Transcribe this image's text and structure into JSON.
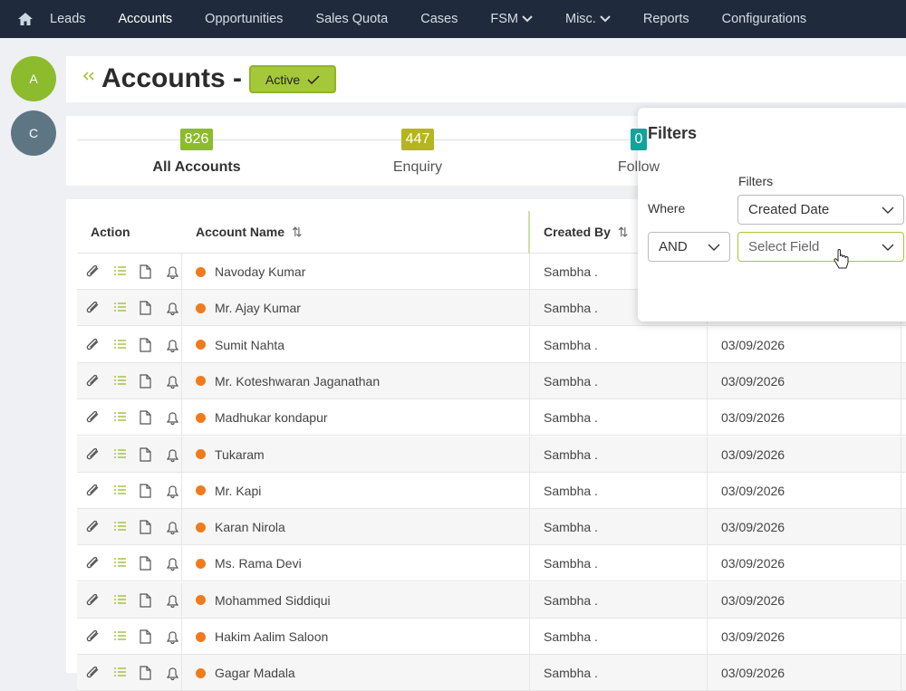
{
  "nav": {
    "items": [
      "Leads",
      "Accounts",
      "Opportunities",
      "Sales Quota",
      "Cases",
      "FSM",
      "Misc.",
      "Reports",
      "Configurations"
    ]
  },
  "sidebar": {
    "avatars": [
      "A",
      "C"
    ]
  },
  "header": {
    "title": "Accounts -",
    "status": "Active"
  },
  "tabs": [
    {
      "count": 826,
      "label": "All Accounts"
    },
    {
      "count": 447,
      "label": "Enquiry"
    },
    {
      "count": 0,
      "label": "Follow"
    }
  ],
  "table": {
    "headers": [
      "Action",
      "Account Name",
      "Created By"
    ],
    "rows": [
      [
        "Navoday Kumar",
        "Sambha ."
      ],
      [
        "Mr. Ajay Kumar",
        "Sambha ."
      ],
      [
        "Sumit Nahta",
        "Sambha .",
        "03/09/2026"
      ],
      [
        "Mr. Koteshwaran Jaganathan",
        "Sambha .",
        "03/09/2026"
      ],
      [
        "Madhukar kondapur",
        "Sambha .",
        "03/09/2026"
      ],
      [
        "Tukaram",
        "Sambha .",
        "03/09/2026"
      ],
      [
        "Mr. Kapi",
        "Sambha .",
        "03/09/2026"
      ],
      [
        "Karan Nirola",
        "Sambha .",
        "03/09/2026"
      ],
      [
        "Ms. Rama Devi",
        "Sambha .",
        "03/09/2026"
      ],
      [
        "Mohammed Siddiqui",
        "Sambha .",
        "03/09/2026"
      ],
      [
        "Hakim Aalim Saloon",
        "Sambha .",
        "03/09/2026"
      ],
      [
        "Gagar Madala",
        "Sambha .",
        "03/09/2026"
      ]
    ]
  },
  "filter_panel": {
    "title": "Filters",
    "field_label": "Filters",
    "where": "Where",
    "field": "Created Date",
    "operator": "AND",
    "second_field": "Select Field"
  }
}
